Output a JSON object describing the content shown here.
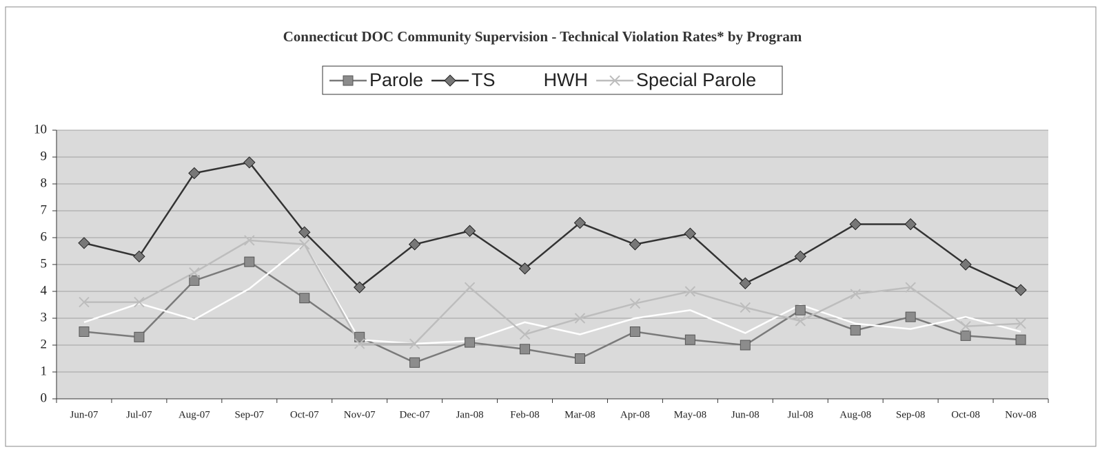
{
  "chart_data": {
    "type": "line",
    "title": "Connecticut DOC Community Supervision - Technical Violation Rates* by Program",
    "categories": [
      "Jun-07",
      "Jul-07",
      "Aug-07",
      "Sep-07",
      "Oct-07",
      "Nov-07",
      "Dec-07",
      "Jan-08",
      "Feb-08",
      "Mar-08",
      "Apr-08",
      "May-08",
      "Jun-08",
      "Jul-08",
      "Aug-08",
      "Sep-08",
      "Oct-08",
      "Nov-08"
    ],
    "series": [
      {
        "name": "Parole",
        "color": "#7a7a7a",
        "marker": "square",
        "values": [
          2.5,
          2.3,
          4.4,
          5.1,
          3.75,
          2.3,
          1.35,
          2.1,
          1.85,
          1.5,
          2.5,
          2.2,
          2.0,
          3.3,
          2.55,
          3.05,
          2.35,
          2.2
        ]
      },
      {
        "name": "TS",
        "color": "#333333",
        "marker": "diamond",
        "values": [
          5.8,
          5.3,
          8.4,
          8.8,
          6.2,
          4.15,
          5.75,
          6.25,
          4.85,
          6.55,
          5.75,
          6.15,
          4.3,
          5.3,
          6.5,
          6.5,
          5.0,
          4.05
        ]
      },
      {
        "name": "HWH",
        "color": "#ffffff",
        "marker": "none",
        "values": [
          2.85,
          3.55,
          2.95,
          4.1,
          5.75,
          2.2,
          2.05,
          2.15,
          2.85,
          2.4,
          3.0,
          3.3,
          2.45,
          3.5,
          2.8,
          2.6,
          3.05,
          2.5
        ]
      },
      {
        "name": "Special Parole",
        "color": "#bdbdbd",
        "marker": "x",
        "values": [
          3.6,
          3.6,
          4.7,
          5.9,
          5.75,
          2.05,
          2.05,
          4.15,
          2.4,
          3.0,
          3.55,
          4.0,
          3.4,
          2.9,
          3.9,
          4.15,
          2.7,
          2.8
        ]
      }
    ],
    "ylim": [
      0,
      10
    ],
    "yticks": [
      0,
      1,
      2,
      3,
      4,
      5,
      6,
      7,
      8,
      9,
      10
    ],
    "grid": true,
    "legend": "top"
  }
}
